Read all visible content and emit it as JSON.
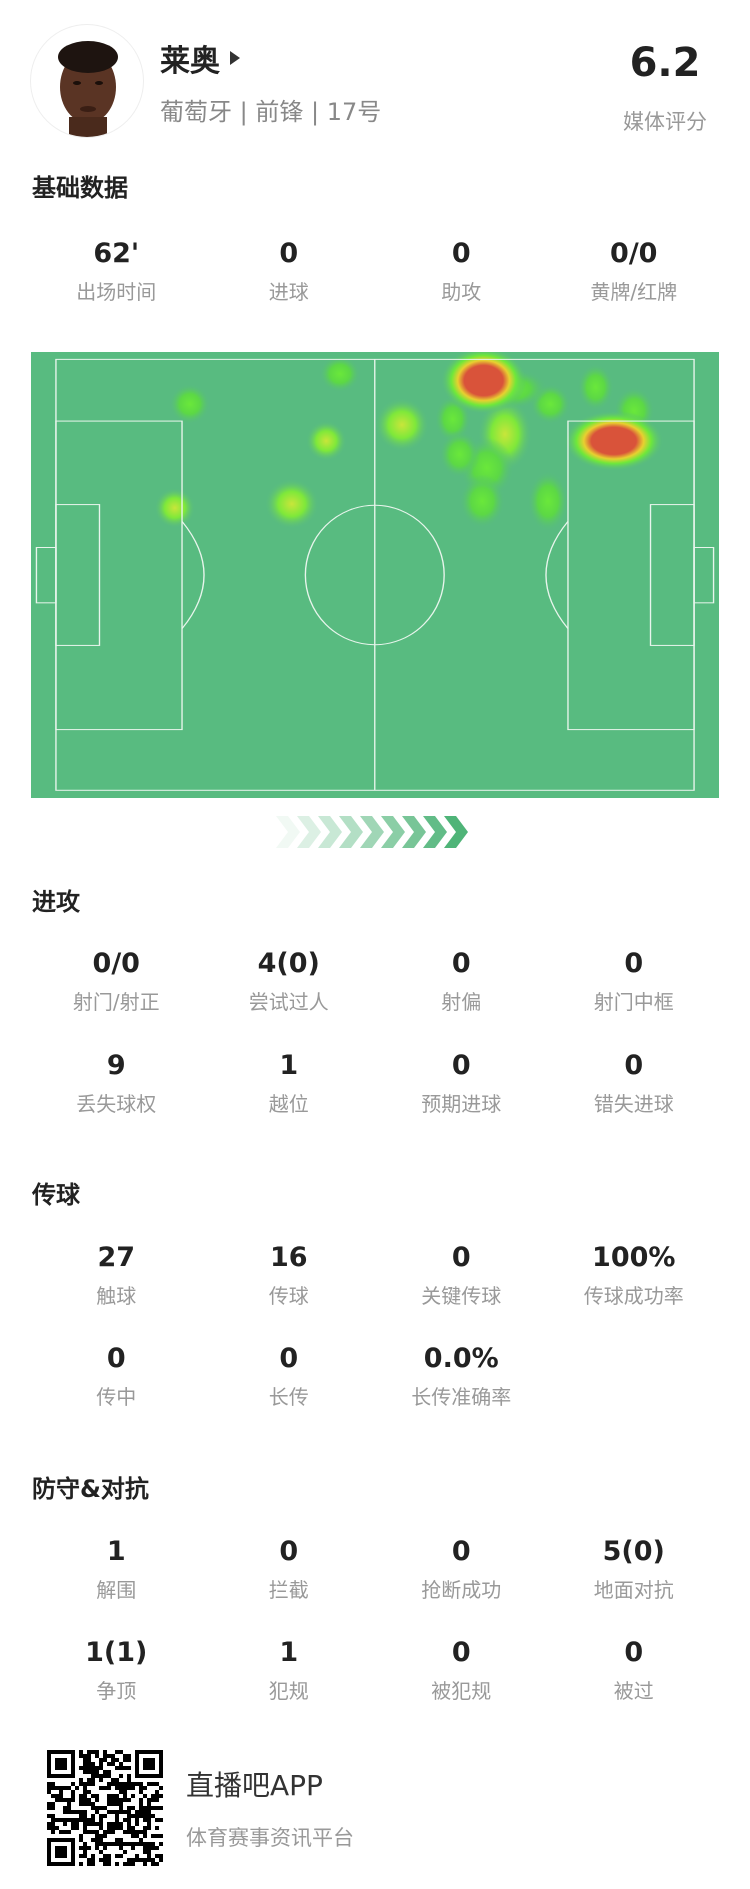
{
  "player": {
    "name": "莱奥",
    "country": "葡萄牙",
    "position": "前锋",
    "number": "17号",
    "rating": "6.2",
    "rating_label": "媒体评分"
  },
  "sections": [
    {
      "title": "基础数据",
      "rows": [
        [
          {
            "v": "62'",
            "l": "出场时间"
          },
          {
            "v": "0",
            "l": "进球"
          },
          {
            "v": "0",
            "l": "助攻"
          },
          {
            "v": "0/0",
            "l": "黄牌/红牌"
          }
        ]
      ]
    },
    {
      "title": "进攻",
      "rows": [
        [
          {
            "v": "0/0",
            "l": "射门/射正"
          },
          {
            "v": "4(0)",
            "l": "尝试过人"
          },
          {
            "v": "0",
            "l": "射偏"
          },
          {
            "v": "0",
            "l": "射门中框"
          }
        ],
        [
          {
            "v": "9",
            "l": "丢失球权"
          },
          {
            "v": "1",
            "l": "越位"
          },
          {
            "v": "0",
            "l": "预期进球"
          },
          {
            "v": "0",
            "l": "错失进球"
          }
        ]
      ]
    },
    {
      "title": "传球",
      "rows": [
        [
          {
            "v": "27",
            "l": "触球"
          },
          {
            "v": "16",
            "l": "传球"
          },
          {
            "v": "0",
            "l": "关键传球"
          },
          {
            "v": "100%",
            "l": "传球成功率"
          }
        ],
        [
          {
            "v": "0",
            "l": "传中"
          },
          {
            "v": "0",
            "l": "长传"
          },
          {
            "v": "0.0%",
            "l": "长传准确率"
          }
        ]
      ]
    },
    {
      "title": "防守&对抗",
      "rows": [
        [
          {
            "v": "1",
            "l": "解围"
          },
          {
            "v": "0",
            "l": "拦截"
          },
          {
            "v": "0",
            "l": "抢断成功"
          },
          {
            "v": "5(0)",
            "l": "地面对抗"
          }
        ],
        [
          {
            "v": "1(1)",
            "l": "争顶"
          },
          {
            "v": "1",
            "l": "犯规"
          },
          {
            "v": "0",
            "l": "被犯规"
          },
          {
            "v": "0",
            "l": "被过"
          }
        ]
      ]
    }
  ],
  "heatmap": {
    "pitch_color": "#58bb80",
    "line_color": "#e8f5ec",
    "attack_direction": "right"
  },
  "footer": {
    "app_name": "直播吧APP",
    "slogan": "体育赛事资讯平台"
  },
  "icons": {
    "name_arrow": "play-triangle-icon",
    "direction": "chevron-right-icon",
    "qr": "qr-code"
  }
}
